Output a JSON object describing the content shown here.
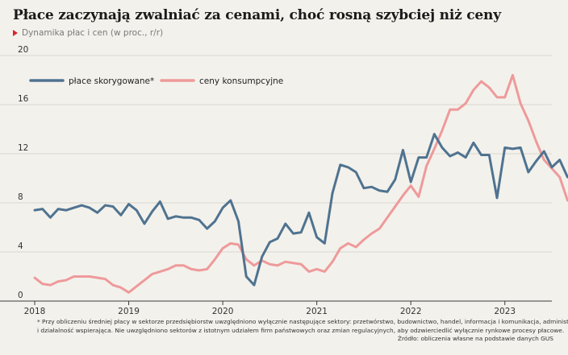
{
  "title": "Płace zaczynają zwalniać za cenami, choć rosną szybciej niż ceny",
  "subtitle": "Dynamika płac i cen (w proc., r/r)",
  "footnote": {
    "line1": "* Przy obliczeniu średniej płacy w sektorze przedsiębiorstw uwzględniono wyłącznie następujące sektory: przetwórstwo, budownictwo, handel, informacja i komunikacja, administrowanie",
    "line2": "i działalność wspierająca. Nie uwzględniono sektorów z istotnym udziałem firm państwowych oraz zmian regulacyjnych, aby odzwierciedlić wyłącznie rynkowe procesy płacowe.",
    "source": "Źródło: obliczenia własne na podstawie danych GUS"
  },
  "colors": {
    "background": "#f3f1ec",
    "wages": "#4f7390",
    "prices": "#ee9a9a",
    "accent": "#d9232e"
  },
  "chart_data": {
    "type": "line",
    "ylim": [
      0,
      20
    ],
    "yticks": [
      "0",
      "4",
      "8",
      "12",
      "16",
      "20"
    ],
    "xlim": [
      0,
      66
    ],
    "xticks": [
      {
        "x": 0,
        "label": "2018"
      },
      {
        "x": 12,
        "label": "2019"
      },
      {
        "x": 24,
        "label": "2020"
      },
      {
        "x": 36,
        "label": "2021"
      },
      {
        "x": 48,
        "label": "2022"
      },
      {
        "x": 60,
        "label": "2023"
      }
    ],
    "grid": true,
    "legend": "top-left",
    "series": [
      {
        "name": "płace skorygowane*",
        "color": "#4f7390",
        "values": [
          7.4,
          7.5,
          6.8,
          7.5,
          7.4,
          7.6,
          7.8,
          7.6,
          7.2,
          7.8,
          7.7,
          7.0,
          7.9,
          7.4,
          6.3,
          7.3,
          8.1,
          6.7,
          6.9,
          6.8,
          6.8,
          6.6,
          5.9,
          6.5,
          7.6,
          8.2,
          6.5,
          2.0,
          1.3,
          3.6,
          4.8,
          5.1,
          6.3,
          5.5,
          5.6,
          7.2,
          5.2,
          4.7,
          8.8,
          11.1,
          10.9,
          10.5,
          9.2,
          9.3,
          9.0,
          8.9,
          9.9,
          12.3,
          9.7,
          11.7,
          11.7,
          13.6,
          12.5,
          11.8,
          12.1,
          11.7,
          12.9,
          11.9,
          11.9,
          8.4,
          12.5,
          12.4,
          12.5,
          10.5,
          11.4,
          12.2,
          10.9,
          11.5,
          10.1
        ]
      },
      {
        "name": "ceny konsumpcyjne",
        "color": "#ee9a9a",
        "values": [
          1.9,
          1.4,
          1.3,
          1.6,
          1.7,
          2.0,
          2.0,
          2.0,
          1.9,
          1.8,
          1.3,
          1.1,
          0.7,
          1.2,
          1.7,
          2.2,
          2.4,
          2.6,
          2.9,
          2.9,
          2.6,
          2.5,
          2.6,
          3.4,
          4.3,
          4.7,
          4.6,
          3.4,
          2.9,
          3.3,
          3.0,
          2.9,
          3.2,
          3.1,
          3.0,
          2.4,
          2.6,
          2.4,
          3.2,
          4.3,
          4.7,
          4.4,
          5.0,
          5.5,
          5.9,
          6.8,
          7.7,
          8.6,
          9.4,
          8.5,
          11.0,
          12.4,
          13.9,
          15.6,
          15.6,
          16.1,
          17.2,
          17.9,
          17.4,
          16.6,
          16.6,
          18.4,
          16.1,
          14.7,
          13.0,
          11.5,
          10.8,
          10.1,
          8.2
        ]
      }
    ]
  }
}
